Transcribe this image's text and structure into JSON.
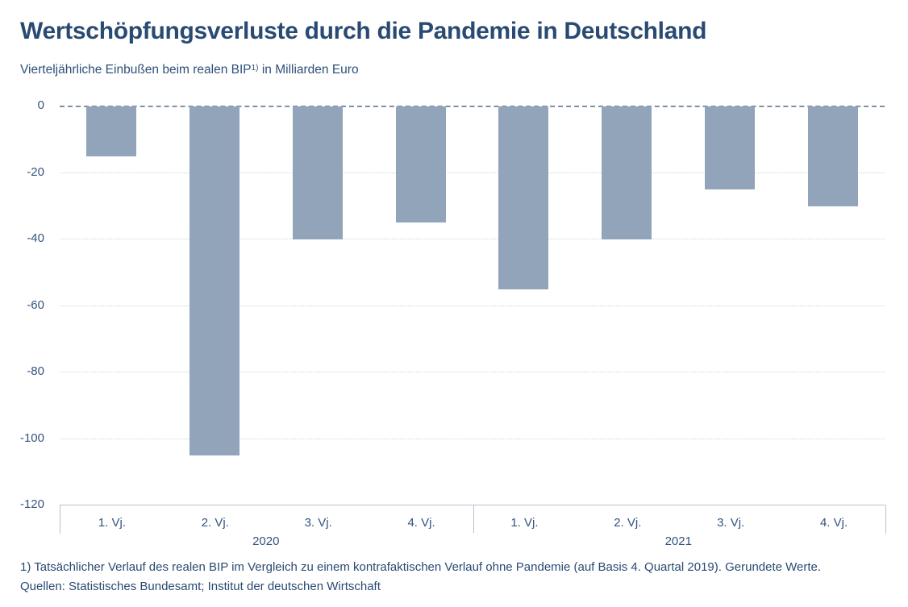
{
  "title": "Wertschöpfungsverluste durch die Pandemie in Deutschland",
  "subtitle": {
    "before": "Vierteljährliche Einbußen beim realen BIP",
    "sup": "1)",
    "after": " in Milliarden Euro"
  },
  "chart_data": {
    "type": "bar",
    "title": "Wertschöpfungsverluste durch die Pandemie in Deutschland",
    "subtitle": "Vierteljährliche Einbußen beim realen BIP 1) in Milliarden Euro",
    "unit": "Milliarden Euro",
    "categories": [
      "1. Vj.",
      "2. Vj.",
      "3. Vj.",
      "4. Vj.",
      "1. Vj.",
      "2. Vj.",
      "3. Vj.",
      "4. Vj."
    ],
    "groups": [
      {
        "label": "2020",
        "quarters": [
          "1. Vj.",
          "2. Vj.",
          "3. Vj.",
          "4. Vj."
        ],
        "values": [
          -15,
          -105,
          -40,
          -35
        ]
      },
      {
        "label": "2021",
        "quarters": [
          "1. Vj.",
          "2. Vj.",
          "3. Vj.",
          "4. Vj."
        ],
        "values": [
          -55,
          -40,
          -25,
          -30
        ]
      }
    ],
    "ylim": [
      -120,
      0
    ],
    "yticks": [
      0,
      -20,
      -40,
      -60,
      -80,
      -100,
      -120
    ],
    "grid": "dotted horizontal lines at each 20-step, dashed zero line on top",
    "legend": "none",
    "colors": {
      "bar": "#91a4ba",
      "zero_line": "#7d90aa",
      "gridline": "#c9d4e2",
      "axis_border": "#b3c1d1",
      "title_text": "#294a72",
      "label_text": "#33547e"
    }
  },
  "footnote": "1) Tatsächlicher Verlauf des realen BIP im Vergleich zu einem kontrafaktischen Verlauf ohne Pandemie (auf Basis 4. Quartal 2019). Gerundete Werte.",
  "source": "Quellen: Statistisches Bundesamt; Institut der deutschen Wirtschaft"
}
